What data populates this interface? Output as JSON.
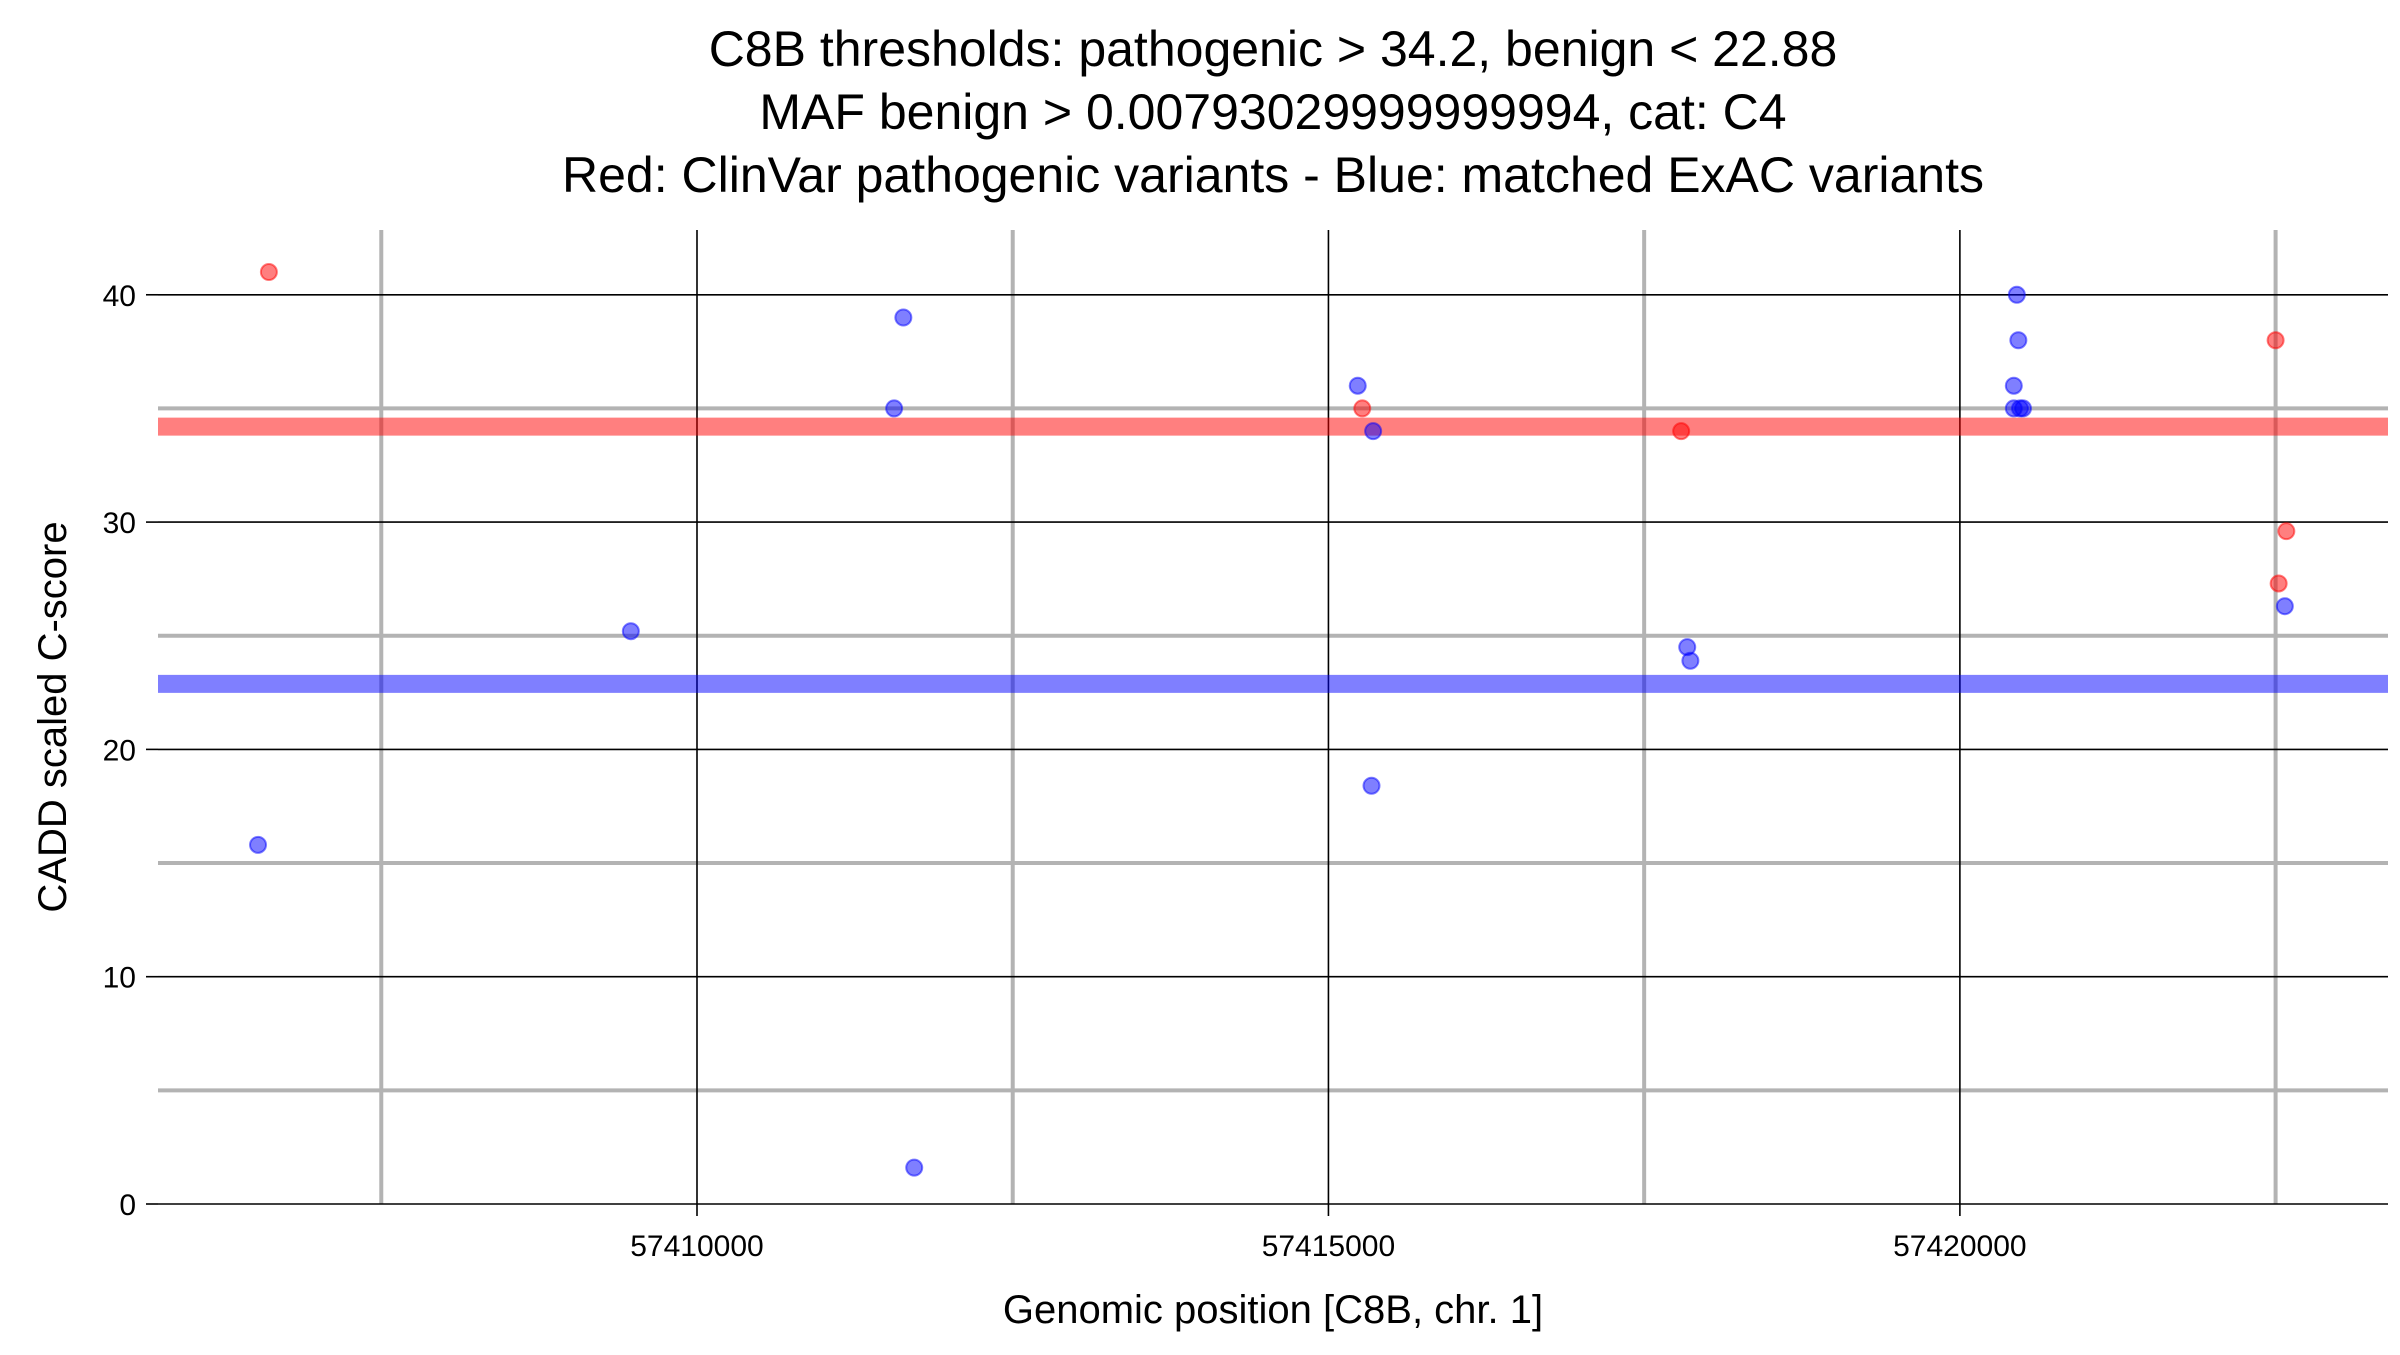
{
  "chart_data": {
    "type": "scatter",
    "title_lines": [
      "C8B thresholds: pathogenic > 34.2, benign < 22.88",
      "MAF benign > 0.00793029999999994, cat: C4",
      "Red: ClinVar pathogenic variants - Blue: matched ExAC variants"
    ],
    "xlabel": "Genomic position [C8B, chr. 1]",
    "ylabel": "CADD scaled C-score",
    "xlim": [
      57405732,
      57423390
    ],
    "ylim": [
      0,
      42.85
    ],
    "x_ticks": [
      57410000,
      57415000,
      57420000
    ],
    "x_tick_labels": [
      "57410000",
      "57415000",
      "57420000"
    ],
    "x_minor": [
      57407500,
      57412500,
      57417500,
      57422500
    ],
    "y_ticks": [
      0,
      10,
      20,
      30,
      40
    ],
    "y_tick_labels": [
      "0",
      "10",
      "20",
      "30",
      "40"
    ],
    "y_minor": [
      5,
      15,
      25,
      35
    ],
    "grid": true,
    "thresholds": [
      {
        "name": "pathogenic",
        "value": 34.2,
        "color": "#ff0000"
      },
      {
        "name": "benign",
        "value": 22.88,
        "color": "#0000ff"
      }
    ],
    "series": [
      {
        "name": "ClinVar pathogenic",
        "color": "#ff0000",
        "points": [
          [
            57406610,
            41.0
          ],
          [
            57415268,
            35.0
          ],
          [
            57417793,
            34.0
          ],
          [
            57422500,
            38.0
          ],
          [
            57422585,
            29.6
          ],
          [
            57422524,
            27.3
          ]
        ]
      },
      {
        "name": "matched ExAC",
        "color": "#0000ff",
        "points": [
          [
            57406524,
            15.8
          ],
          [
            57409476,
            25.2
          ],
          [
            57411561,
            35.0
          ],
          [
            57411634,
            39.0
          ],
          [
            57411720,
            1.6
          ],
          [
            57415232,
            36.0
          ],
          [
            57415354,
            34.0
          ],
          [
            57415341,
            18.4
          ],
          [
            57417841,
            24.5
          ],
          [
            57417866,
            23.9
          ],
          [
            57420451,
            40.0
          ],
          [
            57420463,
            38.0
          ],
          [
            57420427,
            36.0
          ],
          [
            57420427,
            35.0
          ],
          [
            57420476,
            35.0
          ],
          [
            57420500,
            35.0
          ],
          [
            57422573,
            26.3
          ]
        ]
      }
    ]
  }
}
